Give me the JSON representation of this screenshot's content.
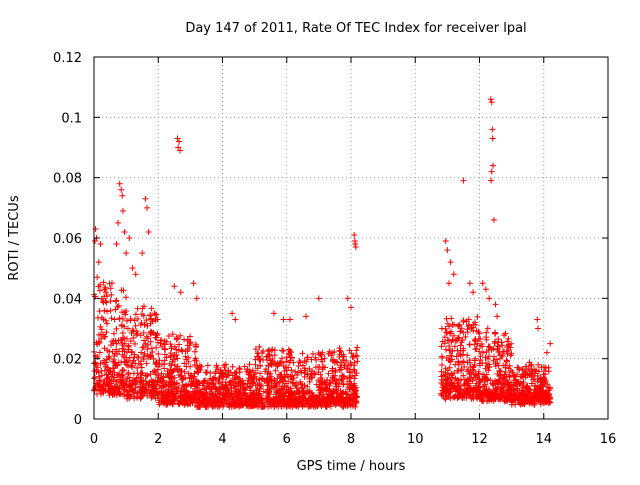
{
  "chart_data": {
    "type": "scatter",
    "title": "Day 147 of 2011, Rate Of TEC Index for receiver lpal",
    "xlabel": "GPS time / hours",
    "ylabel": "ROTI / TECUs",
    "xlim": [
      0,
      16
    ],
    "ylim": [
      0,
      0.12
    ],
    "x_ticks": [
      0,
      2,
      4,
      6,
      8,
      10,
      12,
      14,
      16
    ],
    "x_tick_labels": [
      "0",
      "2",
      "4",
      "6",
      "8",
      "10",
      "12",
      "14",
      "16"
    ],
    "y_ticks": [
      0,
      0.02,
      0.04,
      0.06,
      0.08,
      0.1,
      0.12
    ],
    "y_tick_labels": [
      "0",
      "0.02",
      "0.04",
      "0.06",
      "0.08",
      "0.1",
      "0.12"
    ],
    "grid": true,
    "marker": "+",
    "color": "#ff0000",
    "series": [
      {
        "name": "ROTI",
        "segments": [
          {
            "x_start": 0.0,
            "x_end": 1.0,
            "y_base": 0.009,
            "y_spread": 0.035
          },
          {
            "x_start": 1.0,
            "x_end": 2.0,
            "y_base": 0.008,
            "y_spread": 0.028
          },
          {
            "x_start": 2.0,
            "x_end": 3.2,
            "y_base": 0.006,
            "y_spread": 0.022
          },
          {
            "x_start": 3.2,
            "x_end": 5.0,
            "y_base": 0.005,
            "y_spread": 0.012
          },
          {
            "x_start": 5.0,
            "x_end": 8.2,
            "y_base": 0.005,
            "y_spread": 0.018
          },
          {
            "x_start": 10.8,
            "x_end": 12.0,
            "y_base": 0.008,
            "y_spread": 0.025
          },
          {
            "x_start": 12.0,
            "x_end": 13.0,
            "y_base": 0.007,
            "y_spread": 0.022
          },
          {
            "x_start": 13.0,
            "x_end": 14.2,
            "y_base": 0.006,
            "y_spread": 0.012
          }
        ],
        "highlights": [
          {
            "x": 0.05,
            "y": 0.063
          },
          {
            "x": 0.08,
            "y": 0.06
          },
          {
            "x": 0.03,
            "y": 0.059
          },
          {
            "x": 0.2,
            "y": 0.058
          },
          {
            "x": 0.15,
            "y": 0.052
          },
          {
            "x": 0.1,
            "y": 0.047
          },
          {
            "x": 0.8,
            "y": 0.078
          },
          {
            "x": 0.85,
            "y": 0.076
          },
          {
            "x": 0.88,
            "y": 0.074
          },
          {
            "x": 0.9,
            "y": 0.069
          },
          {
            "x": 0.75,
            "y": 0.065
          },
          {
            "x": 0.95,
            "y": 0.062
          },
          {
            "x": 0.7,
            "y": 0.058
          },
          {
            "x": 1.0,
            "y": 0.055
          },
          {
            "x": 1.1,
            "y": 0.06
          },
          {
            "x": 1.6,
            "y": 0.073
          },
          {
            "x": 1.65,
            "y": 0.07
          },
          {
            "x": 1.7,
            "y": 0.062
          },
          {
            "x": 1.5,
            "y": 0.055
          },
          {
            "x": 1.2,
            "y": 0.05
          },
          {
            "x": 1.3,
            "y": 0.048
          },
          {
            "x": 2.6,
            "y": 0.093
          },
          {
            "x": 2.65,
            "y": 0.092
          },
          {
            "x": 2.62,
            "y": 0.09
          },
          {
            "x": 2.68,
            "y": 0.089
          },
          {
            "x": 2.5,
            "y": 0.044
          },
          {
            "x": 2.7,
            "y": 0.042
          },
          {
            "x": 3.1,
            "y": 0.045
          },
          {
            "x": 3.2,
            "y": 0.04
          },
          {
            "x": 4.3,
            "y": 0.035
          },
          {
            "x": 4.4,
            "y": 0.033
          },
          {
            "x": 5.6,
            "y": 0.035
          },
          {
            "x": 5.9,
            "y": 0.033
          },
          {
            "x": 6.1,
            "y": 0.033
          },
          {
            "x": 6.6,
            "y": 0.034
          },
          {
            "x": 7.0,
            "y": 0.04
          },
          {
            "x": 7.9,
            "y": 0.04
          },
          {
            "x": 8.0,
            "y": 0.037
          },
          {
            "x": 8.1,
            "y": 0.061
          },
          {
            "x": 8.12,
            "y": 0.059
          },
          {
            "x": 8.15,
            "y": 0.057
          },
          {
            "x": 8.13,
            "y": 0.058
          },
          {
            "x": 10.95,
            "y": 0.059
          },
          {
            "x": 11.0,
            "y": 0.056
          },
          {
            "x": 11.1,
            "y": 0.052
          },
          {
            "x": 11.2,
            "y": 0.048
          },
          {
            "x": 11.05,
            "y": 0.045
          },
          {
            "x": 11.5,
            "y": 0.079
          },
          {
            "x": 11.7,
            "y": 0.045
          },
          {
            "x": 11.8,
            "y": 0.042
          },
          {
            "x": 12.1,
            "y": 0.045
          },
          {
            "x": 12.2,
            "y": 0.043
          },
          {
            "x": 12.3,
            "y": 0.04
          },
          {
            "x": 12.35,
            "y": 0.106
          },
          {
            "x": 12.38,
            "y": 0.105
          },
          {
            "x": 12.4,
            "y": 0.096
          },
          {
            "x": 12.41,
            "y": 0.093
          },
          {
            "x": 12.42,
            "y": 0.084
          },
          {
            "x": 12.38,
            "y": 0.082
          },
          {
            "x": 12.36,
            "y": 0.079
          },
          {
            "x": 12.45,
            "y": 0.066
          },
          {
            "x": 12.5,
            "y": 0.038
          },
          {
            "x": 12.55,
            "y": 0.034
          },
          {
            "x": 13.8,
            "y": 0.033
          },
          {
            "x": 13.82,
            "y": 0.03
          },
          {
            "x": 14.2,
            "y": 0.025
          },
          {
            "x": 14.1,
            "y": 0.022
          },
          {
            "x": 14.15,
            "y": 0.017
          }
        ]
      }
    ]
  }
}
